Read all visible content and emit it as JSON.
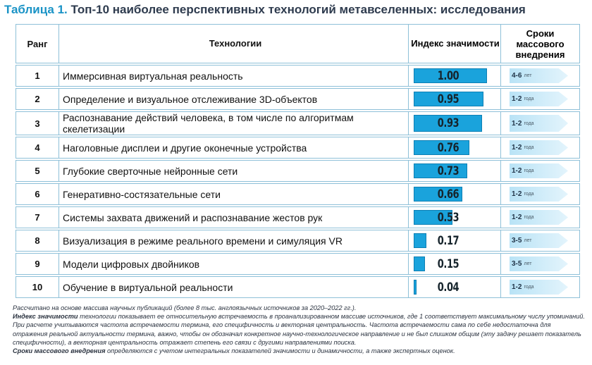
{
  "title": {
    "number": "Таблица 1.",
    "text": "Топ-10 наиболее перспективных технологий метавселенных: исследования"
  },
  "header": {
    "rank": "Ранг",
    "tech": "Технологии",
    "index": "Индекс значимости",
    "time": "Сроки массового внедрения"
  },
  "rows": [
    {
      "rank": "1",
      "tech": "Иммерсивная виртуальная реальность",
      "index": "1.00",
      "index_value": 1.0,
      "years": "4-6",
      "unit": "лет"
    },
    {
      "rank": "2",
      "tech": "Определение и визуальное отслеживание 3D-объектов",
      "index": "0.95",
      "index_value": 0.95,
      "years": "1-2",
      "unit": "года"
    },
    {
      "rank": "3",
      "tech": "Распознавание действий человека, в том числе по алгоритмам скелетизации",
      "index": "0.93",
      "index_value": 0.93,
      "years": "1-2",
      "unit": "года"
    },
    {
      "rank": "4",
      "tech": "Наголовные дисплеи и другие оконечные устройства",
      "index": "0.76",
      "index_value": 0.76,
      "years": "1-2",
      "unit": "года"
    },
    {
      "rank": "5",
      "tech": "Глубокие сверточные нейронные сети",
      "index": "0.73",
      "index_value": 0.73,
      "years": "1-2",
      "unit": "года"
    },
    {
      "rank": "6",
      "tech": "Генеративно-состязательные сети",
      "index": "0.66",
      "index_value": 0.66,
      "years": "1-2",
      "unit": "года"
    },
    {
      "rank": "7",
      "tech": "Системы захвата движений и распознавание жестов рук",
      "index": "0.53",
      "index_value": 0.53,
      "years": "1-2",
      "unit": "года"
    },
    {
      "rank": "8",
      "tech": "Визуализация в режиме реального времени и симуляция VR",
      "index": "0.17",
      "index_value": 0.17,
      "years": "3-5",
      "unit": "лет"
    },
    {
      "rank": "9",
      "tech": "Модели цифровых двойников",
      "index": "0.15",
      "index_value": 0.15,
      "years": "3-5",
      "unit": "лет"
    },
    {
      "rank": "10",
      "tech": "Обучение в виртуальной реальности",
      "index": "0.04",
      "index_value": 0.04,
      "years": "1-2",
      "unit": "года"
    }
  ],
  "notes": {
    "line1": "Рассчитано на основе массива научных публикаций (более 8 тыс. англоязычных источников за 2020–2022 гг.).",
    "term1": "Индекс значимости",
    "text1": " технологии показывает ее относительную встречаемость в проанализированном массиве источников, где 1 соответствует максимальному числу упоминаний. При расчете учитываются частота встречаемости термина, его специфичность и векторная центральность. Частота встречаемости сама по себе недостаточна для отражения реальной актуальности термина, важно, чтобы он обозначал конкретное научно-технологическое направление и не был слишком общим (эту задачу решает показатель специфичности), а векторная центральность отражает степень его связи с другими направлениями поиска.",
    "term2": "Сроки массового внедрения",
    "text2": " определяются с учетом интегральных показателей значимости и динамичности, а также экспертных оценок."
  }
}
